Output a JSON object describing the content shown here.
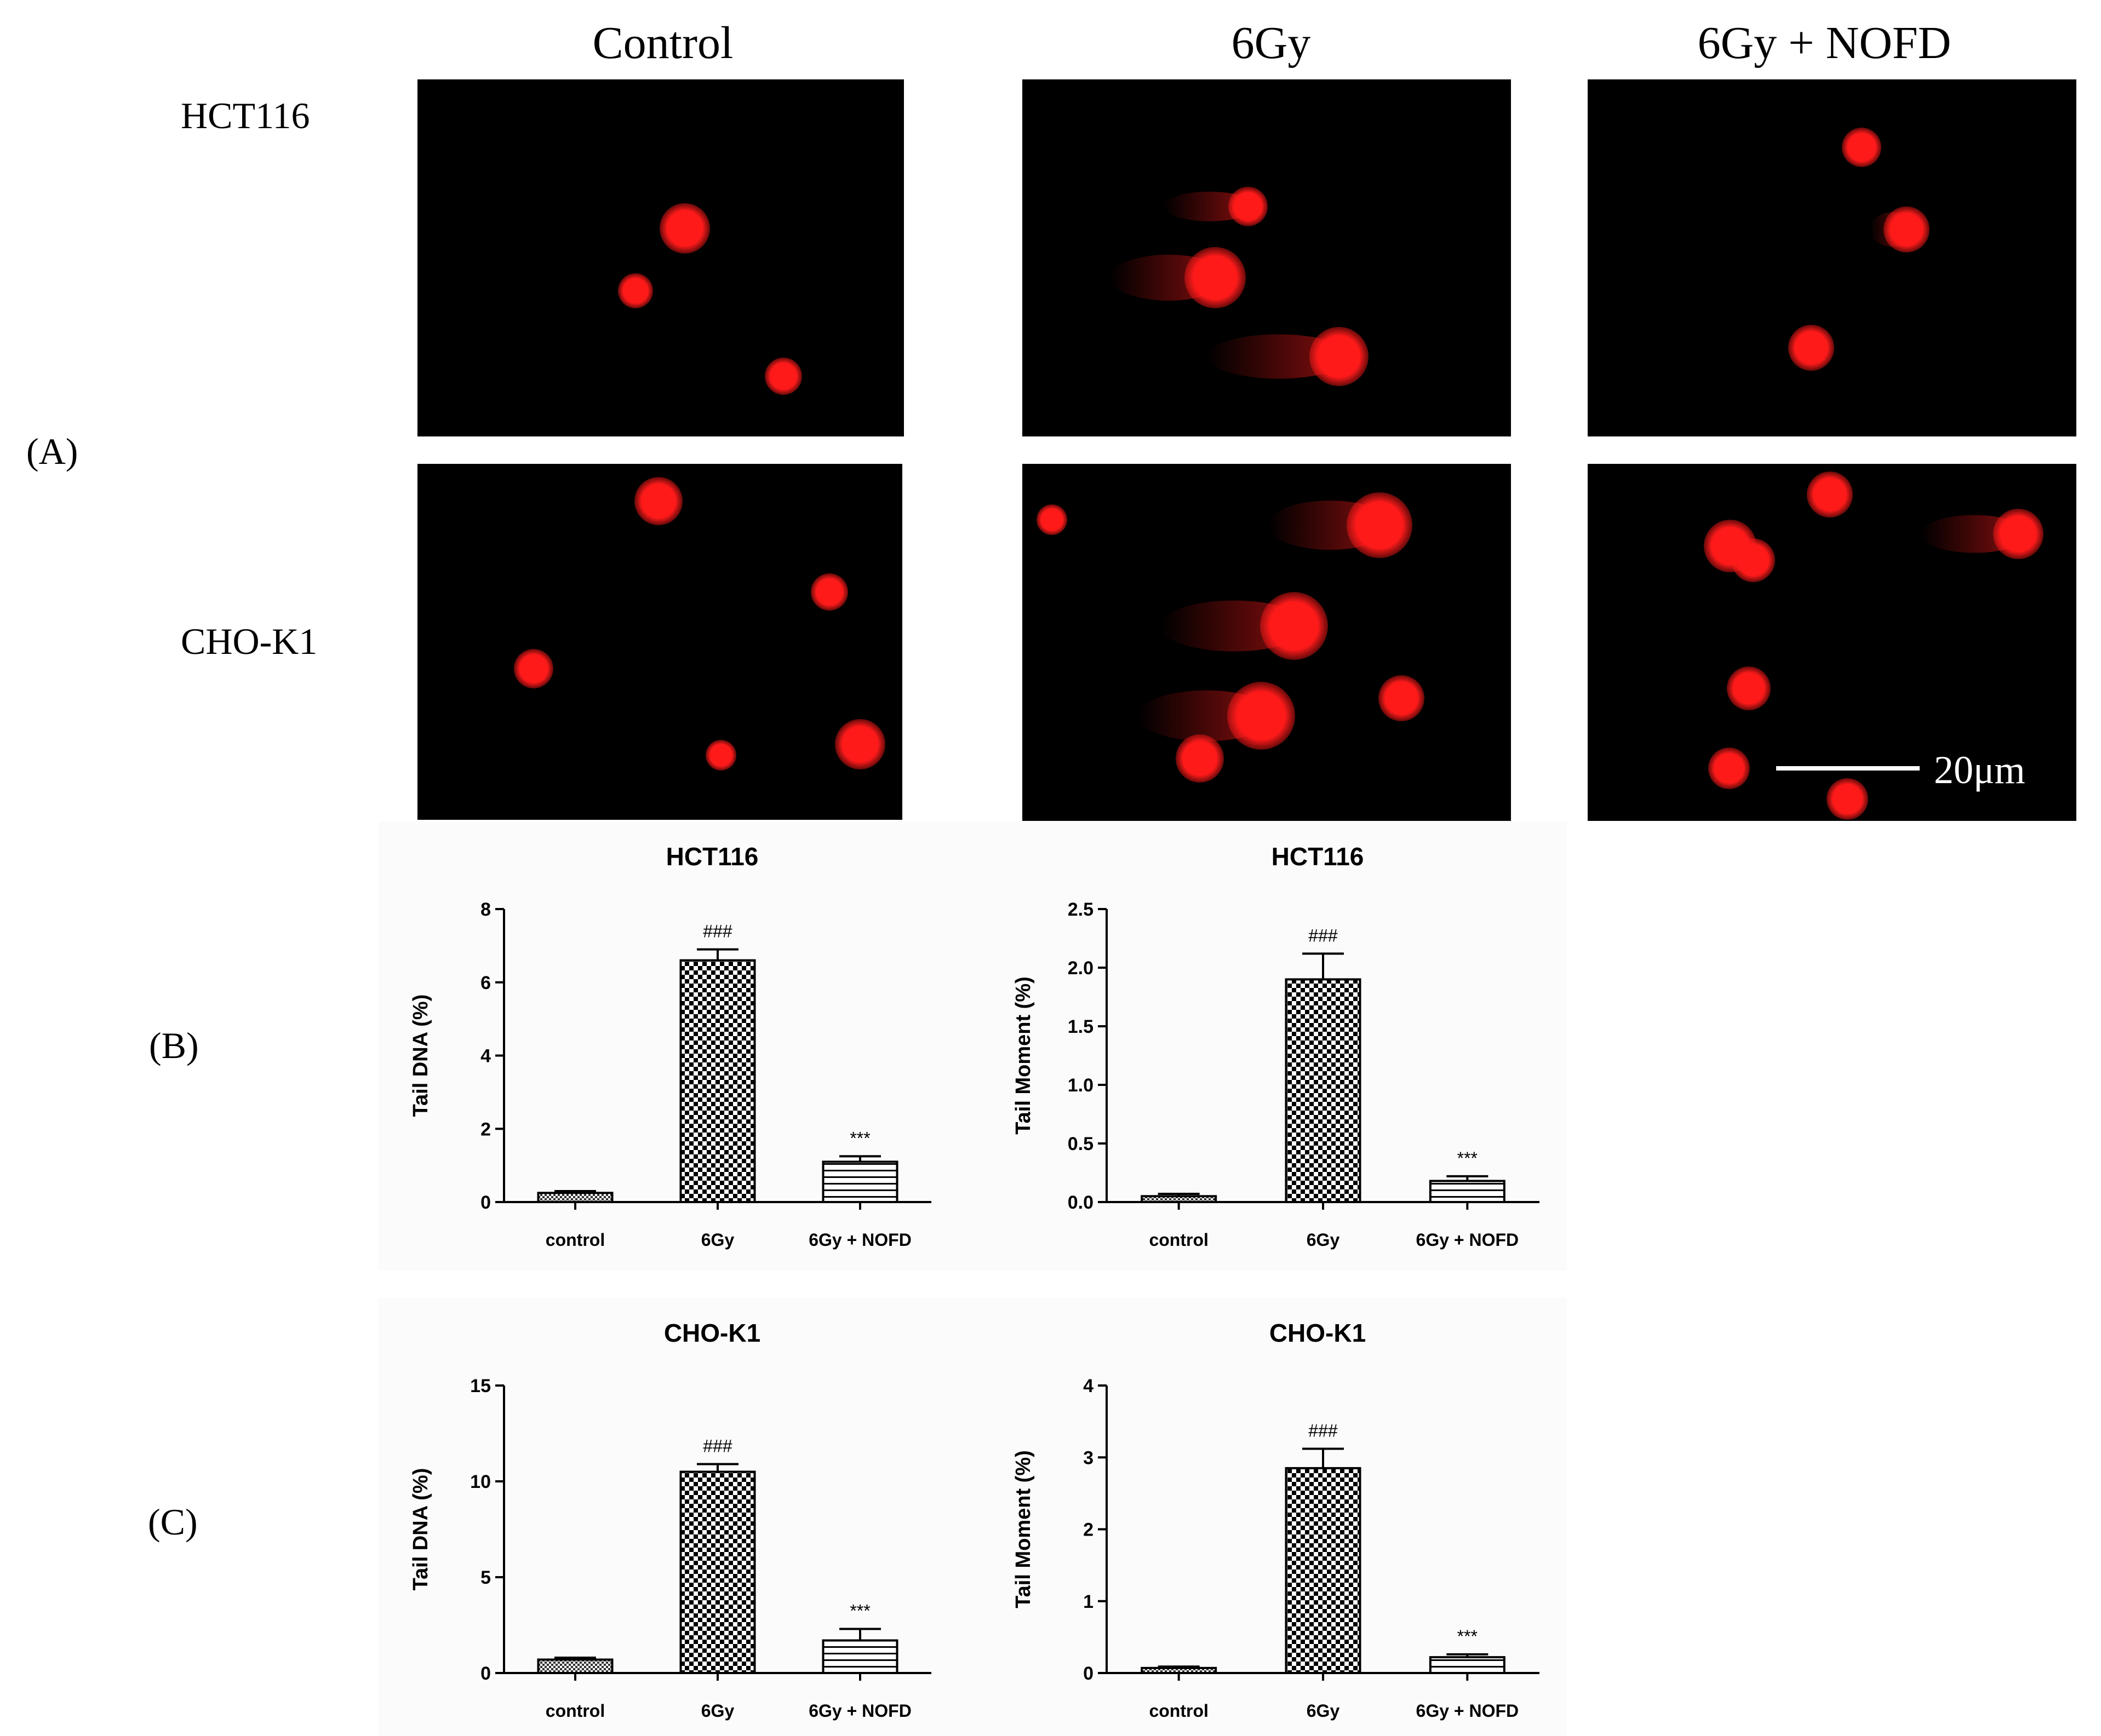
{
  "figure_a": {
    "panel_label": "(A)",
    "column_titles": [
      "Control",
      "6Gy",
      "6Gy + NOFD"
    ],
    "row_labels": [
      "HCT116",
      "CHO-K1"
    ],
    "scale_bar": "20μm",
    "image_description": "comet assay fluorescence micrographs: red nuclei on black background"
  },
  "figure_b": {
    "panel_label": "(B)"
  },
  "figure_c": {
    "panel_label": "(C)"
  },
  "colors": {
    "nucleus": "#ff1a1a",
    "background": "#000000",
    "chart_panel": "#fbfbfb",
    "axis": "#000000"
  },
  "chart_data": [
    {
      "type": "bar",
      "title": "HCT116",
      "ylabel": "Tail DNA (%)",
      "xlabel": "",
      "categories": [
        "control",
        "6Gy",
        "6Gy + NOFD"
      ],
      "values": [
        0.25,
        6.6,
        1.1
      ],
      "errors": [
        0.05,
        0.3,
        0.15
      ],
      "annotations": [
        "",
        "###",
        "***"
      ],
      "patterns": [
        "fine-check",
        "check",
        "hstripe"
      ],
      "ylim": [
        0,
        8
      ],
      "yticks": [
        0,
        2,
        4,
        6,
        8
      ]
    },
    {
      "type": "bar",
      "title": "HCT116",
      "ylabel": "Tail Moment (%)",
      "xlabel": "",
      "categories": [
        "control",
        "6Gy",
        "6Gy + NOFD"
      ],
      "values": [
        0.05,
        1.9,
        0.18
      ],
      "errors": [
        0.02,
        0.22,
        0.04
      ],
      "annotations": [
        "",
        "###",
        "***"
      ],
      "patterns": [
        "fine-check",
        "check",
        "hstripe"
      ],
      "ylim": [
        0,
        2.5
      ],
      "yticks": [
        "0.0",
        "0.5",
        "1.0",
        "1.5",
        "2.0",
        "2.5"
      ]
    },
    {
      "type": "bar",
      "title": "CHO-K1",
      "ylabel": "Tail DNA (%)",
      "xlabel": "",
      "categories": [
        "control",
        "6Gy",
        "6Gy + NOFD"
      ],
      "values": [
        0.7,
        10.5,
        1.7
      ],
      "errors": [
        0.1,
        0.4,
        0.6
      ],
      "annotations": [
        "",
        "###",
        "***"
      ],
      "patterns": [
        "fine-check",
        "check",
        "hstripe"
      ],
      "ylim": [
        0,
        15
      ],
      "yticks": [
        0,
        5,
        10,
        15
      ]
    },
    {
      "type": "bar",
      "title": "CHO-K1",
      "ylabel": "Tail Moment (%)",
      "xlabel": "",
      "categories": [
        "control",
        "6Gy",
        "6Gy + NOFD"
      ],
      "values": [
        0.07,
        2.85,
        0.22
      ],
      "errors": [
        0.02,
        0.27,
        0.04
      ],
      "annotations": [
        "",
        "###",
        "***"
      ],
      "patterns": [
        "fine-check",
        "check",
        "hstripe"
      ],
      "ylim": [
        0,
        4
      ],
      "yticks": [
        0,
        1,
        2,
        3,
        4
      ]
    }
  ]
}
